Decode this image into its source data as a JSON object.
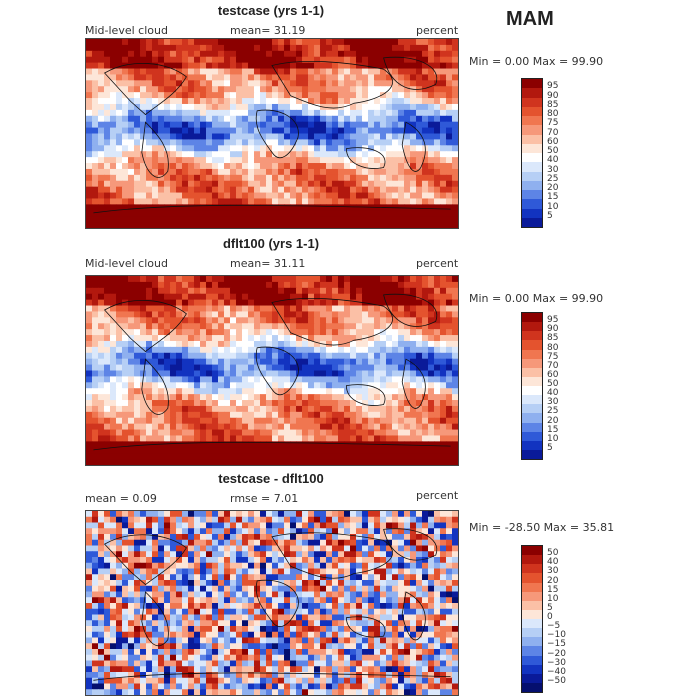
{
  "season": "MAM",
  "panels": [
    {
      "title": "testcase (yrs 1-1)",
      "left_label": "Mid-level cloud",
      "mean_label": "mean=  31.19",
      "right_label": "percent",
      "minmax": "Min =    0.00 Max =   99.90",
      "colorbar_labels": [
        "95",
        "90",
        "85",
        "80",
        "75",
        "70",
        "60",
        "50",
        "40",
        "30",
        "25",
        "20",
        "15",
        "10",
        "5"
      ],
      "colorbar_colors": [
        "#8b0000",
        "#b2180e",
        "#d0341e",
        "#e4532e",
        "#f07650",
        "#f6987a",
        "#fbc0a6",
        "#fde6d8",
        "#ffffff",
        "#dbe8fb",
        "#b6cff5",
        "#8fb0ef",
        "#5d84e6",
        "#2f59d8",
        "#1233c0",
        "#0a1a99"
      ]
    },
    {
      "title": "dflt100 (yrs 1-1)",
      "left_label": "Mid-level cloud",
      "mean_label": "mean=  31.11",
      "right_label": "percent",
      "minmax": "Min =    0.00 Max =   99.90",
      "colorbar_labels": [
        "95",
        "90",
        "85",
        "80",
        "75",
        "70",
        "60",
        "50",
        "40",
        "30",
        "25",
        "20",
        "15",
        "10",
        "5"
      ],
      "colorbar_colors": [
        "#8b0000",
        "#b2180e",
        "#d0341e",
        "#e4532e",
        "#f07650",
        "#f6987a",
        "#fbc0a6",
        "#fde6d8",
        "#ffffff",
        "#dbe8fb",
        "#b6cff5",
        "#8fb0ef",
        "#5d84e6",
        "#2f59d8",
        "#1233c0",
        "#0a1a99"
      ]
    },
    {
      "title": "testcase - dflt100",
      "left_label": "mean =    0.09",
      "mean_label": "rmse =    7.01",
      "right_label": "percent",
      "minmax": "Min = -28.50 Max =   35.81",
      "colorbar_labels": [
        "50",
        "40",
        "30",
        "20",
        "15",
        "10",
        "5",
        "0",
        "−5",
        "−10",
        "−15",
        "−20",
        "−30",
        "−40",
        "−50"
      ],
      "colorbar_colors": [
        "#8b0000",
        "#b2180e",
        "#d0341e",
        "#e4532e",
        "#f07650",
        "#f6987a",
        "#fbc0a6",
        "#fde6d8",
        "#dbe8fb",
        "#b6cff5",
        "#8fb0ef",
        "#5d84e6",
        "#2f59d8",
        "#1233c0",
        "#0a1a99",
        "#050f6e"
      ]
    }
  ]
}
